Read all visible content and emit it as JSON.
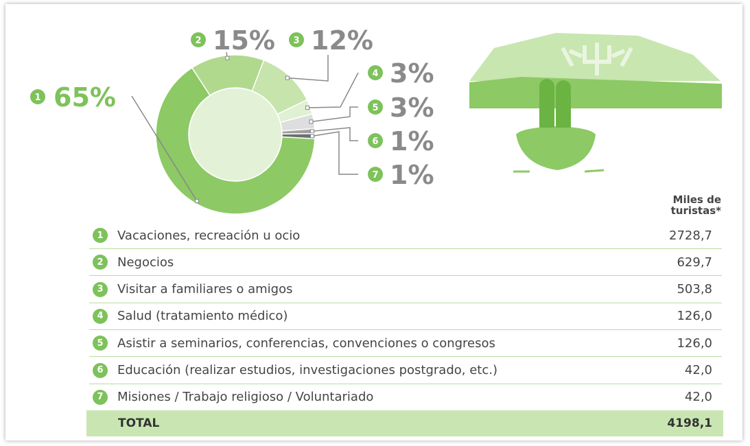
{
  "chart_data": {
    "type": "pie",
    "donut": true,
    "categories": [
      "1",
      "2",
      "3",
      "4",
      "5",
      "6",
      "7"
    ],
    "values": [
      65,
      15,
      12,
      3,
      3,
      1,
      1
    ],
    "value_labels": [
      "65%",
      "15%",
      "12%",
      "3%",
      "3%",
      "1%",
      "1%"
    ],
    "colors": [
      "#8dc965",
      "#b0d98e",
      "#c6e4ab",
      "#e0f0d2",
      "#dedede",
      "#a0a0a0",
      "#6e6e6e"
    ]
  },
  "table": {
    "header": "Miles de turistas*",
    "rows": [
      {
        "number": "1",
        "label": "Vacaciones, recreación u ocio",
        "value": "2728,7"
      },
      {
        "number": "2",
        "label": "Negocios",
        "value": "629,7"
      },
      {
        "number": "3",
        "label": "Visitar a familiares o amigos",
        "value": "503,8"
      },
      {
        "number": "4",
        "label": "Salud (tratamiento médico)",
        "value": "126,0"
      },
      {
        "number": "5",
        "label": "Asistir a seminarios, conferencias, convenciones o congresos",
        "value": "126,0"
      },
      {
        "number": "6",
        "label": "Educación (realizar estudios, investigaciones postgrado, etc.)",
        "value": "42,0"
      },
      {
        "number": "7",
        "label": "Misiones / Trabajo religioso / Voluntariado",
        "value": "42,0"
      }
    ],
    "total": {
      "label": "TOTAL",
      "value": "4198,1"
    }
  }
}
